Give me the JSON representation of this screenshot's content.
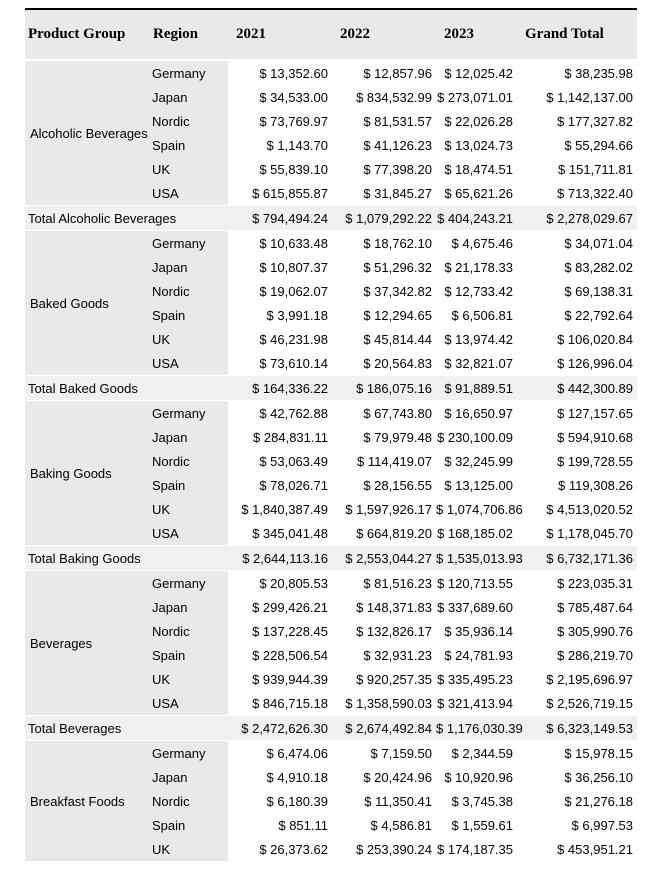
{
  "colors": {
    "header_bg": "#e9e9e9",
    "row_header_bg": "#e9e9e9",
    "total_row_bg": "#f0f0f0",
    "cell_bg": "#ffffff",
    "top_border": "#000000",
    "text": "#000000"
  },
  "table": {
    "headers": [
      "Product Group",
      "Region",
      "2021",
      "2022",
      "2023",
      "Grand Total"
    ],
    "groups": [
      {
        "name": "Alcoholic Beverages",
        "rows": [
          {
            "region": "Germany",
            "values": [
              "$ 13,352.60",
              "$ 12,857.96",
              "$ 12,025.42",
              "$ 38,235.98"
            ]
          },
          {
            "region": "Japan",
            "values": [
              "$ 34,533.00",
              "$ 834,532.99",
              "$ 273,071.01",
              "$ 1,142,137.00"
            ]
          },
          {
            "region": "Nordic",
            "values": [
              "$ 73,769.97",
              "$ 81,531.57",
              "$ 22,026.28",
              "$ 177,327.82"
            ]
          },
          {
            "region": "Spain",
            "values": [
              "$ 1,143.70",
              "$ 41,126.23",
              "$ 13,024.73",
              "$ 55,294.66"
            ]
          },
          {
            "region": "UK",
            "values": [
              "$ 55,839.10",
              "$ 77,398.20",
              "$ 18,474.51",
              "$ 151,711.81"
            ]
          },
          {
            "region": "USA",
            "values": [
              "$ 615,855.87",
              "$ 31,845.27",
              "$ 65,621.26",
              "$ 713,322.40"
            ]
          }
        ],
        "total": {
          "label": "Total Alcoholic Beverages",
          "values": [
            "$ 794,494.24",
            "$ 1,079,292.22",
            "$ 404,243.21",
            "$ 2,278,029.67"
          ]
        }
      },
      {
        "name": "Baked Goods",
        "rows": [
          {
            "region": "Germany",
            "values": [
              "$ 10,633.48",
              "$ 18,762.10",
              "$ 4,675.46",
              "$ 34,071.04"
            ]
          },
          {
            "region": "Japan",
            "values": [
              "$ 10,807.37",
              "$ 51,296.32",
              "$ 21,178.33",
              "$ 83,282.02"
            ]
          },
          {
            "region": "Nordic",
            "values": [
              "$ 19,062.07",
              "$ 37,342.82",
              "$ 12,733.42",
              "$ 69,138.31"
            ]
          },
          {
            "region": "Spain",
            "values": [
              "$ 3,991.18",
              "$ 12,294.65",
              "$ 6,506.81",
              "$ 22,792.64"
            ]
          },
          {
            "region": "UK",
            "values": [
              "$ 46,231.98",
              "$ 45,814.44",
              "$ 13,974.42",
              "$ 106,020.84"
            ]
          },
          {
            "region": "USA",
            "values": [
              "$ 73,610.14",
              "$ 20,564.83",
              "$ 32,821.07",
              "$ 126,996.04"
            ]
          }
        ],
        "total": {
          "label": "Total Baked Goods",
          "values": [
            "$ 164,336.22",
            "$ 186,075.16",
            "$ 91,889.51",
            "$ 442,300.89"
          ]
        }
      },
      {
        "name": "Baking Goods",
        "rows": [
          {
            "region": "Germany",
            "values": [
              "$ 42,762.88",
              "$ 67,743.80",
              "$ 16,650.97",
              "$ 127,157.65"
            ]
          },
          {
            "region": "Japan",
            "values": [
              "$ 284,831.11",
              "$ 79,979.48",
              "$ 230,100.09",
              "$ 594,910.68"
            ]
          },
          {
            "region": "Nordic",
            "values": [
              "$ 53,063.49",
              "$ 114,419.07",
              "$ 32,245.99",
              "$ 199,728.55"
            ]
          },
          {
            "region": "Spain",
            "values": [
              "$ 78,026.71",
              "$ 28,156.55",
              "$ 13,125.00",
              "$ 119,308.26"
            ]
          },
          {
            "region": "UK",
            "values": [
              "$ 1,840,387.49",
              "$ 1,597,926.17",
              "$ 1,074,706.86",
              "$ 4,513,020.52"
            ]
          },
          {
            "region": "USA",
            "values": [
              "$ 345,041.48",
              "$ 664,819.20",
              "$ 168,185.02",
              "$ 1,178,045.70"
            ]
          }
        ],
        "total": {
          "label": "Total Baking Goods",
          "values": [
            "$ 2,644,113.16",
            "$ 2,553,044.27",
            "$ 1,535,013.93",
            "$ 6,732,171.36"
          ]
        }
      },
      {
        "name": "Beverages",
        "rows": [
          {
            "region": "Germany",
            "values": [
              "$ 20,805.53",
              "$ 81,516.23",
              "$ 120,713.55",
              "$ 223,035.31"
            ]
          },
          {
            "region": "Japan",
            "values": [
              "$ 299,426.21",
              "$ 148,371.83",
              "$ 337,689.60",
              "$ 785,487.64"
            ]
          },
          {
            "region": "Nordic",
            "values": [
              "$ 137,228.45",
              "$ 132,826.17",
              "$ 35,936.14",
              "$ 305,990.76"
            ]
          },
          {
            "region": "Spain",
            "values": [
              "$ 228,506.54",
              "$ 32,931.23",
              "$ 24,781.93",
              "$ 286,219.70"
            ]
          },
          {
            "region": "UK",
            "values": [
              "$ 939,944.39",
              "$ 920,257.35",
              "$ 335,495.23",
              "$ 2,195,696.97"
            ]
          },
          {
            "region": "USA",
            "values": [
              "$ 846,715.18",
              "$ 1,358,590.03",
              "$ 321,413.94",
              "$ 2,526,719.15"
            ]
          }
        ],
        "total": {
          "label": "Total Beverages",
          "values": [
            "$ 2,472,626.30",
            "$ 2,674,492.84",
            "$ 1,176,030.39",
            "$ 6,323,149.53"
          ]
        }
      },
      {
        "name": "Breakfast Foods",
        "rows": [
          {
            "region": "Germany",
            "values": [
              "$ 6,474.06",
              "$ 7,159.50",
              "$ 2,344.59",
              "$ 15,978.15"
            ]
          },
          {
            "region": "Japan",
            "values": [
              "$ 4,910.18",
              "$ 20,424.96",
              "$ 10,920.96",
              "$ 36,256.10"
            ]
          },
          {
            "region": "Nordic",
            "values": [
              "$ 6,180.39",
              "$ 11,350.41",
              "$ 3,745.38",
              "$ 21,276.18"
            ]
          },
          {
            "region": "Spain",
            "values": [
              "$ 851.11",
              "$ 4,586.81",
              "$ 1,559.61",
              "$ 6,997.53"
            ]
          },
          {
            "region": "UK",
            "values": [
              "$ 26,373.62",
              "$ 253,390.24",
              "$ 174,187.35",
              "$ 453,951.21"
            ]
          }
        ]
      }
    ]
  }
}
